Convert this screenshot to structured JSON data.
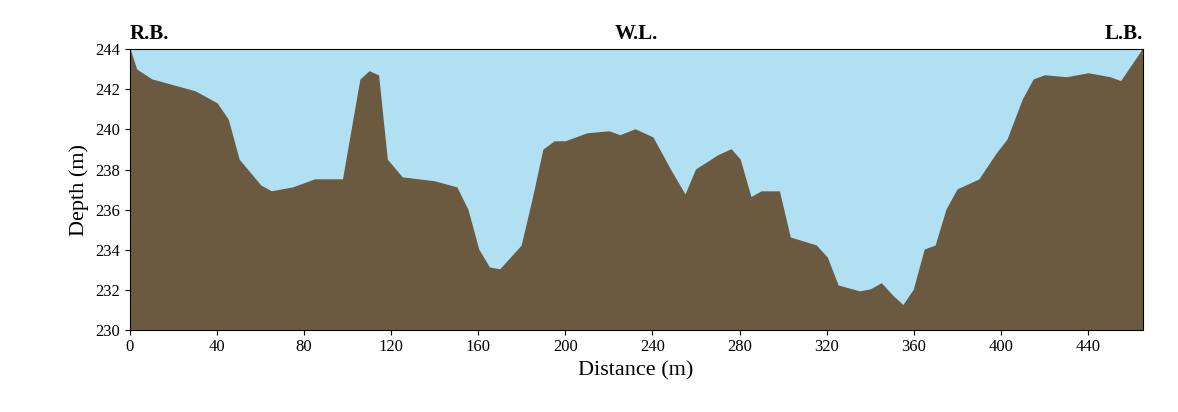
{
  "chart_data": {
    "type": "area",
    "annotations": [
      "R.B.",
      "W.L.",
      "L.B."
    ],
    "xlabel": "Distance (m)",
    "ylabel": "Depth (m)",
    "x": [
      0,
      3,
      10,
      20,
      30,
      40,
      45,
      50,
      60,
      65,
      75,
      85,
      98,
      102,
      106,
      110,
      114,
      118,
      125,
      140,
      150,
      155,
      160,
      165,
      170,
      180,
      185,
      190,
      195,
      200,
      210,
      220,
      225,
      232,
      240,
      248,
      255,
      260,
      270,
      276,
      280,
      285,
      290,
      298,
      303,
      315,
      320,
      325,
      335,
      340,
      345,
      350,
      355,
      360,
      365,
      370,
      375,
      380,
      390,
      398,
      403,
      410,
      415,
      420,
      430,
      440,
      450,
      455,
      460,
      465
    ],
    "values": [
      244,
      243,
      242.5,
      242.2,
      241.9,
      241.3,
      240.5,
      238.5,
      237.2,
      236.9,
      237.1,
      237.5,
      237.5,
      240,
      242.5,
      242.9,
      242.7,
      238.5,
      237.6,
      237.4,
      237.1,
      236,
      234,
      233.1,
      233,
      234.2,
      236.5,
      239,
      239.4,
      239.4,
      239.8,
      239.9,
      239.7,
      240,
      239.6,
      238,
      236.7,
      238,
      238.7,
      239,
      238.5,
      236.6,
      236.9,
      236.9,
      234.6,
      234.2,
      233.6,
      232.2,
      231.9,
      232,
      232.3,
      231.7,
      231.2,
      232,
      234,
      234.2,
      236,
      237,
      237.5,
      238.8,
      239.5,
      241.5,
      242.5,
      242.7,
      242.6,
      242.8,
      242.6,
      242.4,
      243.2,
      244
    ],
    "color": "#6b5a3f",
    "xlim": [
      0,
      465
    ],
    "ylim": [
      230,
      244
    ],
    "xticks": [
      0,
      40,
      80,
      120,
      160,
      200,
      240,
      280,
      320,
      360,
      400,
      440
    ],
    "yticks": [
      230,
      232,
      234,
      236,
      238,
      240,
      242,
      244
    ],
    "grid": false
  }
}
